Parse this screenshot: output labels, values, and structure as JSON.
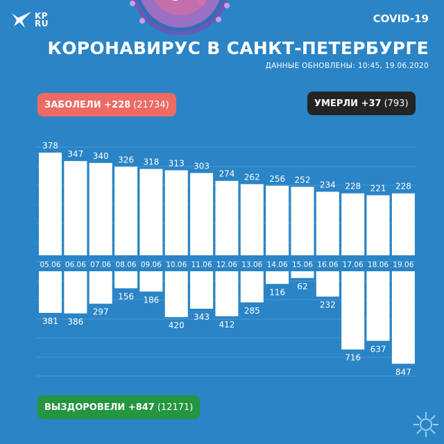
{
  "brand": {
    "logo_text_1": "KP",
    "logo_text_2": "RU",
    "icon": "bird-logo-icon"
  },
  "header": {
    "tag": "COVID-19",
    "title": "КОРОНАВИРУС В САНКТ-ПЕТЕРБУРГЕ",
    "updated": "ДАННЫЕ ОБНОВЛЕНЫ: 10:45, 19.06.2020"
  },
  "badges": {
    "sick": {
      "label": "ЗАБОЛЕЛИ +228",
      "total": "(21734)",
      "color": "#ed6b64"
    },
    "dead": {
      "label": "УМЕРЛИ +37",
      "total": "(793)",
      "color": "#242424"
    },
    "recovered": {
      "label": "ВЫЗДОРОВЕЛИ +847",
      "total": "(12171)",
      "color": "#23963f"
    }
  },
  "colors": {
    "background": "#2a84c6",
    "bars": "#ffffff",
    "grid": "#4b98d2"
  },
  "chart_data": {
    "type": "bar",
    "categories": [
      "05.06",
      "06.06",
      "07.06",
      "08.06",
      "09.06",
      "10.06",
      "11.06",
      "12.06",
      "13.06",
      "14.06",
      "15.06",
      "16.06",
      "17.06",
      "18.06",
      "19.06"
    ],
    "series": [
      {
        "name": "ЗАБОЛЕЛИ",
        "direction": "up",
        "values": [
          378,
          347,
          340,
          326,
          318,
          313,
          303,
          274,
          262,
          256,
          252,
          234,
          228,
          221,
          228
        ]
      },
      {
        "name": "ВЫЗДОРОВЕЛИ",
        "direction": "down",
        "values": [
          381,
          386,
          297,
          156,
          186,
          420,
          343,
          412,
          285,
          116,
          62,
          232,
          716,
          637,
          847
        ]
      }
    ],
    "grid": true
  }
}
